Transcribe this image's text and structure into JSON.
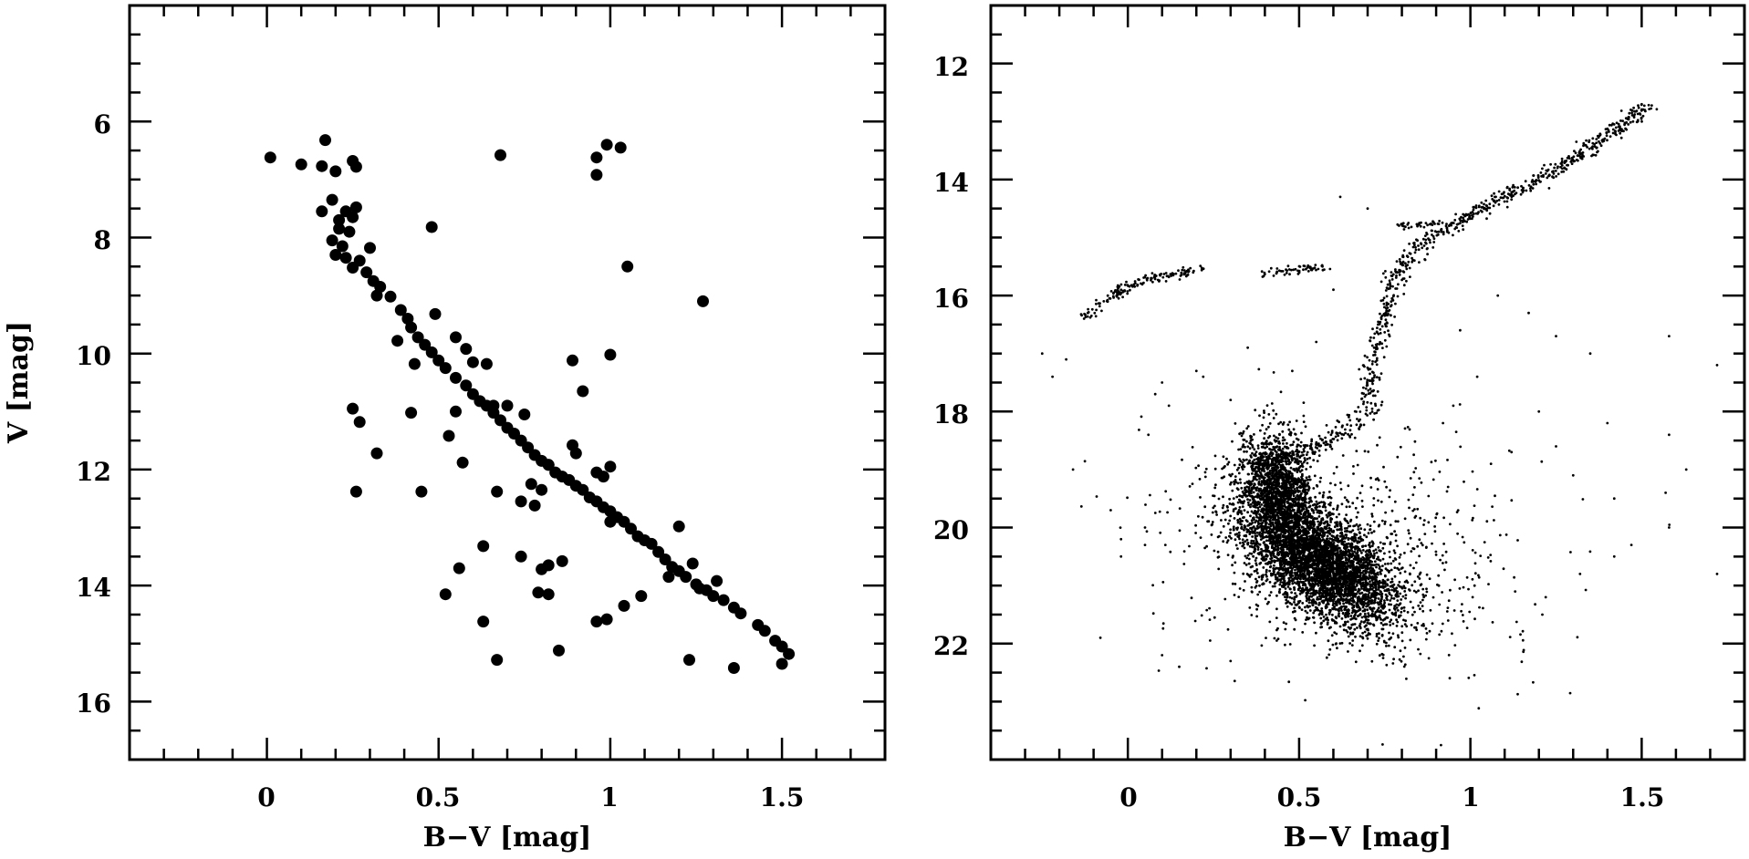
{
  "figure": "two-panel color-magnitude diagrams",
  "colors": {
    "ink": "#000000",
    "background": "#ffffff"
  },
  "chart_data": [
    {
      "type": "scatter",
      "panel": "left",
      "xlabel": "B−V  [mag]",
      "ylabel": "V  [mag]",
      "xlim": [
        -0.4,
        1.8
      ],
      "ylim": [
        17,
        4
      ],
      "y_inverted": true,
      "xticks": [
        0,
        0.5,
        1,
        1.5
      ],
      "xtick_labels": [
        "0",
        "0.5",
        "1",
        "1.5"
      ],
      "yticks": [
        6,
        8,
        10,
        12,
        14,
        16
      ],
      "ytick_labels": [
        "6",
        "8",
        "10",
        "12",
        "14",
        "16"
      ],
      "x_minor_step": 0.1,
      "y_minor_step": 0.5,
      "grid": false,
      "marker": "large-filled-circle",
      "points": [
        [
          0.01,
          6.62
        ],
        [
          0.1,
          6.74
        ],
        [
          0.17,
          6.32
        ],
        [
          0.16,
          6.77
        ],
        [
          0.2,
          6.86
        ],
        [
          0.25,
          6.68
        ],
        [
          0.26,
          6.78
        ],
        [
          0.16,
          7.55
        ],
        [
          0.19,
          7.35
        ],
        [
          0.21,
          7.7
        ],
        [
          0.23,
          7.55
        ],
        [
          0.25,
          7.65
        ],
        [
          0.26,
          7.48
        ],
        [
          0.21,
          7.85
        ],
        [
          0.24,
          7.9
        ],
        [
          0.19,
          8.05
        ],
        [
          0.22,
          8.15
        ],
        [
          0.2,
          8.3
        ],
        [
          0.23,
          8.35
        ],
        [
          0.25,
          8.52
        ],
        [
          0.27,
          8.4
        ],
        [
          0.3,
          8.18
        ],
        [
          0.29,
          8.6
        ],
        [
          0.31,
          8.75
        ],
        [
          0.33,
          8.85
        ],
        [
          0.32,
          9.0
        ],
        [
          0.36,
          9.02
        ],
        [
          0.39,
          9.25
        ],
        [
          0.41,
          9.4
        ],
        [
          0.42,
          9.55
        ],
        [
          0.44,
          9.72
        ],
        [
          0.46,
          9.85
        ],
        [
          0.48,
          9.98
        ],
        [
          0.5,
          10.12
        ],
        [
          0.52,
          10.25
        ],
        [
          0.38,
          9.78
        ],
        [
          0.43,
          10.18
        ],
        [
          0.48,
          7.82
        ],
        [
          0.49,
          9.32
        ],
        [
          0.55,
          9.72
        ],
        [
          0.58,
          9.92
        ],
        [
          0.6,
          10.15
        ],
        [
          0.55,
          10.42
        ],
        [
          0.58,
          10.55
        ],
        [
          0.6,
          10.7
        ],
        [
          0.62,
          10.82
        ],
        [
          0.64,
          10.9
        ],
        [
          0.66,
          11.02
        ],
        [
          0.68,
          11.15
        ],
        [
          0.7,
          11.28
        ],
        [
          0.72,
          11.38
        ],
        [
          0.74,
          11.5
        ],
        [
          0.76,
          11.62
        ],
        [
          0.78,
          11.75
        ],
        [
          0.8,
          11.85
        ],
        [
          0.82,
          11.92
        ],
        [
          0.84,
          12.05
        ],
        [
          0.86,
          12.12
        ],
        [
          0.88,
          12.18
        ],
        [
          0.9,
          12.28
        ],
        [
          0.92,
          12.35
        ],
        [
          0.94,
          12.48
        ],
        [
          0.96,
          12.55
        ],
        [
          0.98,
          12.65
        ],
        [
          1.0,
          12.72
        ],
        [
          1.02,
          12.82
        ],
        [
          1.04,
          12.9
        ],
        [
          1.06,
          13.02
        ],
        [
          1.08,
          13.15
        ],
        [
          1.1,
          13.22
        ],
        [
          1.12,
          13.28
        ],
        [
          1.14,
          13.42
        ],
        [
          1.16,
          13.55
        ],
        [
          1.18,
          13.68
        ],
        [
          1.2,
          13.75
        ],
        [
          1.22,
          13.85
        ],
        [
          1.25,
          13.98
        ],
        [
          1.28,
          14.08
        ],
        [
          1.3,
          14.18
        ],
        [
          1.33,
          14.25
        ],
        [
          1.36,
          14.38
        ],
        [
          1.38,
          14.48
        ],
        [
          1.43,
          14.68
        ],
        [
          1.45,
          14.78
        ],
        [
          1.48,
          14.95
        ],
        [
          1.5,
          15.05
        ],
        [
          1.52,
          15.18
        ],
        [
          1.5,
          15.35
        ],
        [
          0.66,
          10.9
        ],
        [
          0.7,
          10.9
        ],
        [
          0.75,
          11.05
        ],
        [
          0.64,
          10.18
        ],
        [
          0.53,
          11.42
        ],
        [
          0.55,
          11.0
        ],
        [
          0.57,
          11.88
        ],
        [
          0.42,
          11.02
        ],
        [
          0.25,
          10.95
        ],
        [
          0.27,
          11.18
        ],
        [
          0.32,
          11.72
        ],
        [
          0.26,
          12.38
        ],
        [
          0.45,
          12.38
        ],
        [
          0.67,
          12.38
        ],
        [
          0.74,
          12.55
        ],
        [
          0.78,
          12.62
        ],
        [
          0.8,
          12.35
        ],
        [
          0.77,
          12.25
        ],
        [
          0.89,
          11.58
        ],
        [
          0.9,
          11.72
        ],
        [
          0.89,
          10.12
        ],
        [
          0.92,
          10.65
        ],
        [
          1.0,
          10.02
        ],
        [
          1.05,
          8.5
        ],
        [
          1.27,
          9.1
        ],
        [
          0.68,
          6.58
        ],
        [
          0.96,
          6.62
        ],
        [
          0.96,
          6.92
        ],
        [
          0.99,
          6.4
        ],
        [
          1.03,
          6.45
        ],
        [
          0.82,
          11.92
        ],
        [
          0.96,
          12.05
        ],
        [
          0.98,
          12.12
        ],
        [
          1.0,
          11.95
        ],
        [
          1.0,
          12.9
        ],
        [
          1.2,
          12.98
        ],
        [
          0.74,
          13.5
        ],
        [
          0.8,
          13.72
        ],
        [
          0.82,
          13.65
        ],
        [
          0.86,
          13.58
        ],
        [
          0.79,
          14.12
        ],
        [
          0.82,
          14.15
        ],
        [
          0.63,
          13.32
        ],
        [
          0.56,
          13.7
        ],
        [
          0.52,
          14.15
        ],
        [
          0.63,
          14.62
        ],
        [
          0.67,
          15.28
        ],
        [
          0.85,
          15.12
        ],
        [
          0.96,
          14.62
        ],
        [
          0.99,
          14.58
        ],
        [
          1.04,
          14.35
        ],
        [
          1.09,
          14.18
        ],
        [
          1.23,
          15.28
        ],
        [
          1.36,
          15.42
        ],
        [
          1.26,
          14.05
        ],
        [
          1.31,
          13.92
        ],
        [
          1.24,
          13.62
        ],
        [
          1.17,
          13.85
        ]
      ]
    },
    {
      "type": "scatter",
      "panel": "right",
      "xlabel": "B−V  [mag]",
      "xlim": [
        -0.4,
        1.8
      ],
      "ylim": [
        24,
        11
      ],
      "y_inverted": true,
      "xticks": [
        0,
        0.5,
        1,
        1.5
      ],
      "xtick_labels": [
        "0",
        "0.5",
        "1",
        "1.5"
      ],
      "yticks": [
        12,
        14,
        16,
        18,
        20,
        22
      ],
      "ytick_labels": [
        "12",
        "14",
        "16",
        "18",
        "20",
        "22"
      ],
      "x_minor_step": 0.1,
      "y_minor_step": 0.5,
      "grid": false,
      "marker": "small-dot",
      "sequences": [
        {
          "count": 4200,
          "center": [
            0.56,
            20.6
          ],
          "spread": [
            0.09,
            0.55
          ],
          "slope": 1.0
        },
        {
          "count": 1400,
          "center": [
            0.44,
            19.3
          ],
          "spread": [
            0.05,
            0.45
          ],
          "slope": 0.2
        },
        {
          "count": 700,
          "center": [
            0.62,
            20.4
          ],
          "spread": [
            0.26,
            1.05
          ],
          "slope": 0.4
        }
      ],
      "curves": [
        {
          "name": "subgiant branch",
          "count": 170,
          "jitter": [
            0.025,
            0.06
          ],
          "path": [
            [
              0.4,
              18.95
            ],
            [
              0.5,
              18.75
            ],
            [
              0.58,
              18.55
            ],
            [
              0.65,
              18.3
            ],
            [
              0.7,
              17.9
            ]
          ]
        },
        {
          "name": "red giant branch",
          "count": 650,
          "jitter": [
            0.016,
            0.05
          ],
          "path": [
            [
              0.7,
              17.9
            ],
            [
              0.72,
              17.2
            ],
            [
              0.74,
              16.6
            ],
            [
              0.77,
              15.9
            ],
            [
              0.82,
              15.3
            ],
            [
              0.9,
              14.95
            ],
            [
              1.02,
              14.55
            ],
            [
              1.15,
              14.15
            ],
            [
              1.3,
              13.65
            ],
            [
              1.45,
              13.05
            ],
            [
              1.52,
              12.7
            ]
          ]
        },
        {
          "name": "horizontal branch",
          "count": 150,
          "jitter": [
            0.012,
            0.05
          ],
          "path": [
            [
              -0.12,
              16.4
            ],
            [
              -0.06,
              16.05
            ],
            [
              0.0,
              15.85
            ],
            [
              0.08,
              15.7
            ],
            [
              0.21,
              15.55
            ]
          ]
        },
        {
          "name": "red clump",
          "count": 55,
          "jitter": [
            0.025,
            0.04
          ],
          "path": [
            [
              0.4,
              15.62
            ],
            [
              0.58,
              15.5
            ]
          ]
        },
        {
          "name": "asymptotic branch",
          "count": 35,
          "jitter": [
            0.012,
            0.03
          ],
          "path": [
            [
              0.8,
              14.8
            ],
            [
              0.92,
              14.75
            ]
          ]
        }
      ],
      "field_points": [
        [
          -0.25,
          17.0
        ],
        [
          -0.22,
          17.4
        ],
        [
          -0.18,
          17.1
        ],
        [
          -0.16,
          19.0
        ],
        [
          -0.05,
          19.7
        ],
        [
          -0.02,
          20.2
        ],
        [
          0.05,
          20.0
        ],
        [
          0.05,
          20.3
        ],
        [
          -0.02,
          20.5
        ],
        [
          0.2,
          17.3
        ],
        [
          0.22,
          17.4
        ],
        [
          0.1,
          17.5
        ],
        [
          0.08,
          17.7
        ],
        [
          0.12,
          17.9
        ],
        [
          0.06,
          18.4
        ],
        [
          0.3,
          17.8
        ],
        [
          -0.08,
          21.9
        ],
        [
          0.1,
          22.2
        ],
        [
          0.15,
          22.4
        ],
        [
          0.3,
          22.3
        ],
        [
          0.97,
          16.6
        ],
        [
          1.17,
          16.3
        ],
        [
          1.25,
          16.7
        ],
        [
          1.35,
          17.0
        ],
        [
          1.58,
          16.7
        ],
        [
          1.72,
          17.2
        ],
        [
          1.58,
          18.4
        ],
        [
          1.4,
          18.2
        ],
        [
          1.25,
          18.6
        ],
        [
          1.12,
          18.7
        ],
        [
          1.06,
          18.9
        ],
        [
          1.3,
          19.1
        ],
        [
          1.42,
          19.5
        ],
        [
          1.57,
          19.4
        ],
        [
          1.63,
          19.0
        ],
        [
          1.58,
          20.0
        ],
        [
          1.47,
          20.3
        ],
        [
          1.42,
          20.5
        ],
        [
          1.32,
          20.8
        ],
        [
          1.22,
          21.2
        ],
        [
          1.21,
          21.5
        ],
        [
          1.72,
          20.8
        ],
        [
          0.95,
          17.9
        ],
        [
          0.62,
          14.3
        ],
        [
          0.7,
          14.5
        ],
        [
          0.6,
          15.9
        ],
        [
          0.55,
          16.8
        ],
        [
          0.48,
          17.3
        ],
        [
          1.2,
          18.0
        ],
        [
          1.02,
          17.4
        ],
        [
          0.92,
          18.2
        ],
        [
          1.08,
          16.0
        ],
        [
          0.35,
          16.9
        ]
      ]
    }
  ]
}
